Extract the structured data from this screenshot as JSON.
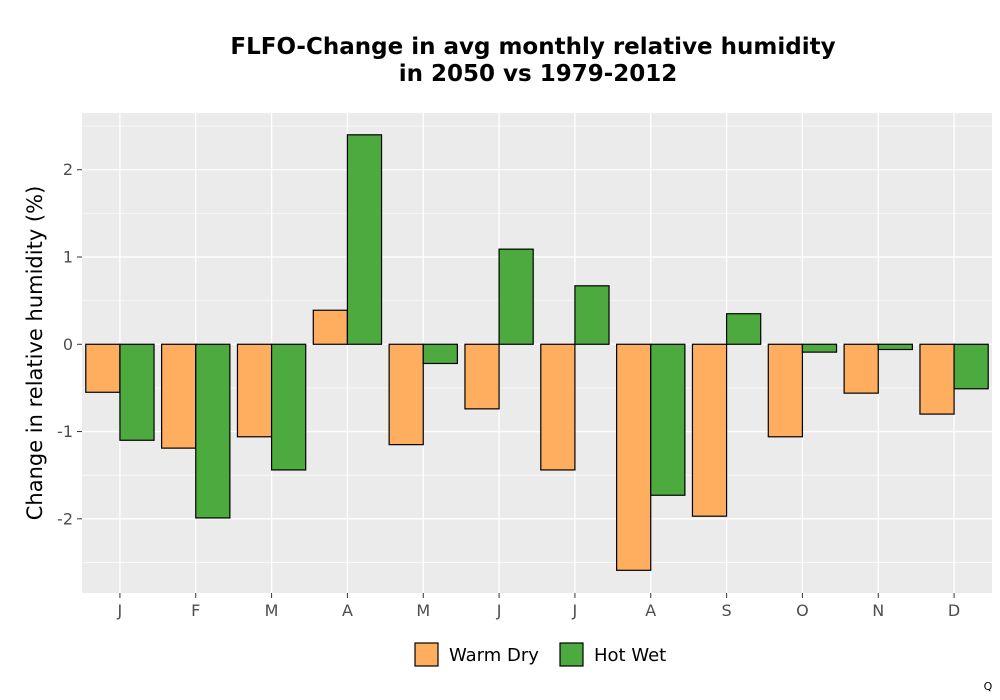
{
  "chart_data": {
    "type": "bar",
    "title_line1": "FLFO-Change in avg monthly relative humidity",
    "title_line2": "in 2050 vs 1979-2012",
    "ylabel": "Change in relative humidity (%)",
    "xlabel": "",
    "categories": [
      "J",
      "F",
      "M",
      "A",
      "M",
      "J",
      "J",
      "A",
      "S",
      "O",
      "N",
      "D"
    ],
    "ylim": [
      -2.85,
      2.65
    ],
    "yticks": [
      -2,
      -1,
      0,
      1,
      2
    ],
    "grid": true,
    "legend_position": "bottom",
    "series": [
      {
        "name": "Warm Dry",
        "color": "#FFAD5F",
        "values": [
          -0.55,
          -1.19,
          -1.06,
          0.39,
          -1.15,
          -0.74,
          -1.44,
          -2.59,
          -1.97,
          -1.06,
          -0.56,
          -0.8
        ]
      },
      {
        "name": "Hot Wet",
        "color": "#4DAA3F",
        "values": [
          -1.1,
          -1.99,
          -1.44,
          2.4,
          -0.22,
          1.09,
          0.67,
          -1.73,
          0.35,
          -0.09,
          -0.06,
          -0.51
        ]
      }
    ]
  },
  "corner_mark": "Q"
}
